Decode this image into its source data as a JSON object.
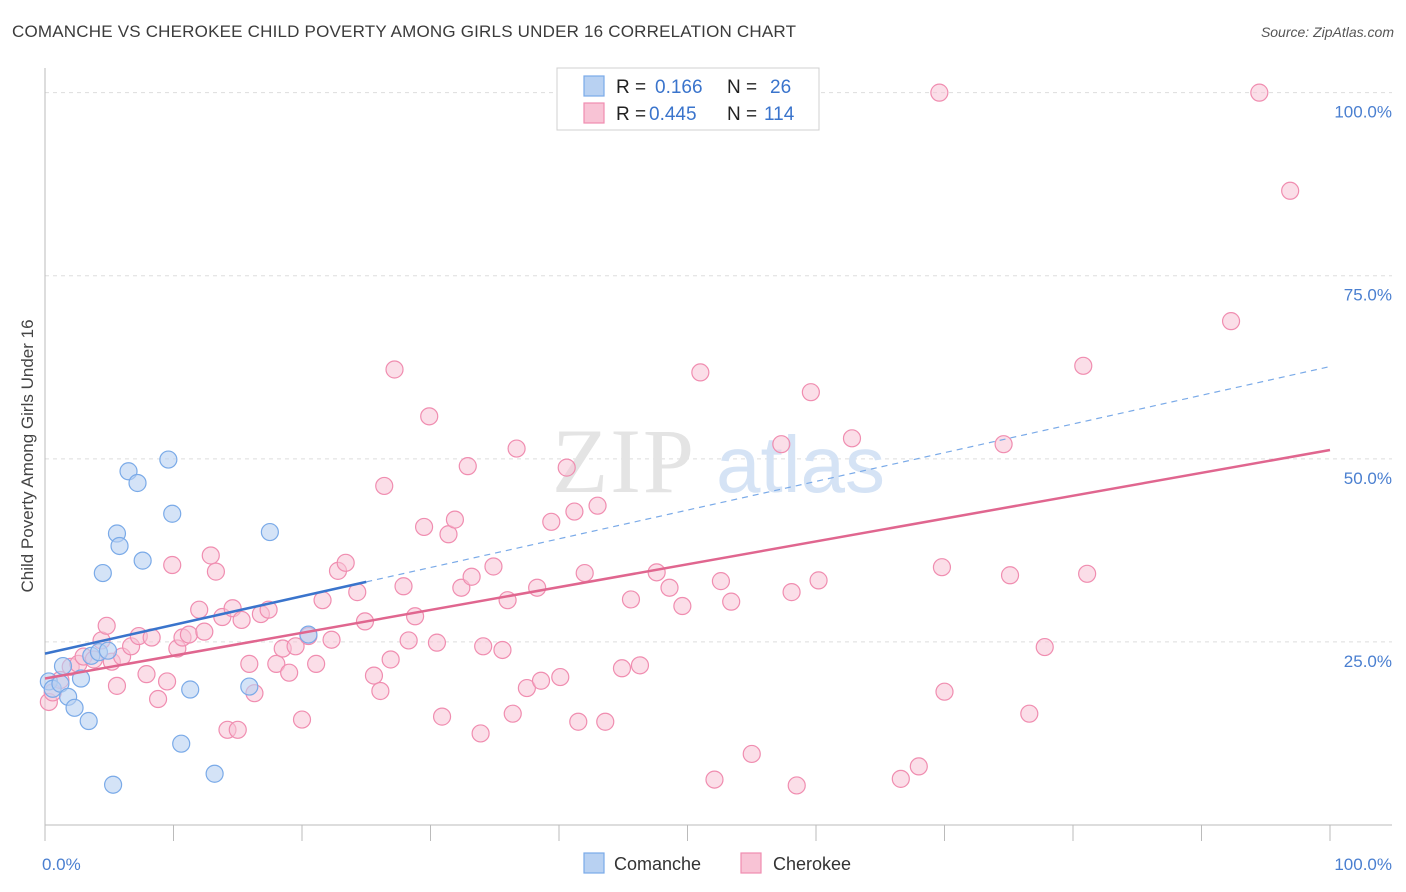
{
  "header": {
    "title": "COMANCHE VS CHEROKEE CHILD POVERTY AMONG GIRLS UNDER 16 CORRELATION CHART",
    "source": "Source: ZipAtlas.com"
  },
  "watermark": {
    "zip": "ZIP",
    "atlas": "atlas"
  },
  "colors": {
    "comanche": "#7aaae8",
    "comanche_fill": "#b8d1f2",
    "comanche_line": "#3a74cc",
    "cherokee": "#f08db0",
    "cherokee_fill": "#f8c3d5",
    "cherokee_line": "#e0668f",
    "axis_label": "#4a7fd0",
    "grid": "#dddddd"
  },
  "legend": {
    "rows": [
      {
        "r_label": "R = ",
        "r_value": "0.166",
        "n_label": "N = ",
        "n_value": "26"
      },
      {
        "r_label": "R = ",
        "r_value": "0.445",
        "n_label": "N = ",
        "n_value": "114"
      }
    ]
  },
  "chart_data": {
    "type": "scatter",
    "title": "COMANCHE VS CHEROKEE CHILD POVERTY AMONG GIRLS UNDER 16 CORRELATION CHART",
    "xlabel": "",
    "ylabel": "Child Poverty Among Girls Under 16",
    "xlim": [
      0,
      100
    ],
    "ylim": [
      0,
      102
    ],
    "x_tick_labels": [
      "0.0%",
      "100.0%"
    ],
    "y_ticks": [
      25,
      50,
      75,
      100
    ],
    "y_tick_labels": [
      "25.0%",
      "50.0%",
      "75.0%",
      "100.0%"
    ],
    "grid": true,
    "legend_position": "top-center",
    "series": [
      {
        "name": "Comanche",
        "r": 0.166,
        "n": 26,
        "trend": {
          "x0": 0,
          "y0": 23.4,
          "x1": 25,
          "y1": 33.2,
          "dash_to_x": 100,
          "dash_to_y": 62.6
        },
        "points": [
          [
            0.3,
            19.6
          ],
          [
            0.6,
            18.6
          ],
          [
            1.2,
            19.3
          ],
          [
            1.4,
            21.7
          ],
          [
            1.8,
            17.5
          ],
          [
            2.3,
            16.0
          ],
          [
            2.8,
            20.0
          ],
          [
            3.4,
            14.2
          ],
          [
            3.6,
            23.1
          ],
          [
            4.2,
            23.6
          ],
          [
            4.5,
            34.4
          ],
          [
            4.9,
            23.8
          ],
          [
            5.3,
            5.5
          ],
          [
            5.6,
            39.8
          ],
          [
            5.8,
            38.1
          ],
          [
            6.5,
            48.3
          ],
          [
            7.2,
            46.7
          ],
          [
            7.6,
            36.1
          ],
          [
            9.6,
            49.9
          ],
          [
            9.9,
            42.5
          ],
          [
            10.6,
            11.1
          ],
          [
            11.3,
            18.5
          ],
          [
            13.2,
            7.0
          ],
          [
            15.9,
            18.9
          ],
          [
            17.5,
            40.0
          ],
          [
            20.5,
            26.0
          ]
        ]
      },
      {
        "name": "Cherokee",
        "r": 0.445,
        "n": 114,
        "trend": {
          "x0": 0,
          "y0": 20.0,
          "x1": 100,
          "y1": 51.2
        },
        "points": [
          [
            0.3,
            16.8
          ],
          [
            0.6,
            18.1
          ],
          [
            1.2,
            19.8
          ],
          [
            2.0,
            21.6
          ],
          [
            2.6,
            22.0
          ],
          [
            3.0,
            23.0
          ],
          [
            3.8,
            22.6
          ],
          [
            4.4,
            25.2
          ],
          [
            4.8,
            27.2
          ],
          [
            5.2,
            22.3
          ],
          [
            5.6,
            19.0
          ],
          [
            6.0,
            23.0
          ],
          [
            6.7,
            24.4
          ],
          [
            7.3,
            25.8
          ],
          [
            7.9,
            20.6
          ],
          [
            8.3,
            25.6
          ],
          [
            8.8,
            17.2
          ],
          [
            9.5,
            19.6
          ],
          [
            9.9,
            35.5
          ],
          [
            10.3,
            24.1
          ],
          [
            10.7,
            25.6
          ],
          [
            11.2,
            26.0
          ],
          [
            12.0,
            29.4
          ],
          [
            12.4,
            26.4
          ],
          [
            12.9,
            36.8
          ],
          [
            13.3,
            34.6
          ],
          [
            13.8,
            28.4
          ],
          [
            14.2,
            13.0
          ],
          [
            14.6,
            29.6
          ],
          [
            15.3,
            28.0
          ],
          [
            15.9,
            22.0
          ],
          [
            16.3,
            18.0
          ],
          [
            16.8,
            28.8
          ],
          [
            17.4,
            29.4
          ],
          [
            18.0,
            22.0
          ],
          [
            18.5,
            24.1
          ],
          [
            19.0,
            20.8
          ],
          [
            19.5,
            24.4
          ],
          [
            20.0,
            14.4
          ],
          [
            20.5,
            25.8
          ],
          [
            21.1,
            22.0
          ],
          [
            21.6,
            30.7
          ],
          [
            22.3,
            25.3
          ],
          [
            22.8,
            34.7
          ],
          [
            23.4,
            35.8
          ],
          [
            24.3,
            31.8
          ],
          [
            24.9,
            27.8
          ],
          [
            25.6,
            20.4
          ],
          [
            26.1,
            18.3
          ],
          [
            26.4,
            46.3
          ],
          [
            26.9,
            22.6
          ],
          [
            27.2,
            62.2
          ],
          [
            27.9,
            32.6
          ],
          [
            28.3,
            25.2
          ],
          [
            28.8,
            28.5
          ],
          [
            29.5,
            40.7
          ],
          [
            29.9,
            55.8
          ],
          [
            30.5,
            24.9
          ],
          [
            30.9,
            14.8
          ],
          [
            31.4,
            39.7
          ],
          [
            31.9,
            41.7
          ],
          [
            32.4,
            32.4
          ],
          [
            32.9,
            49.0
          ],
          [
            33.2,
            33.9
          ],
          [
            33.9,
            12.5
          ],
          [
            34.1,
            24.4
          ],
          [
            34.9,
            35.3
          ],
          [
            35.6,
            23.9
          ],
          [
            36.0,
            30.7
          ],
          [
            36.4,
            15.2
          ],
          [
            36.7,
            51.4
          ],
          [
            37.5,
            18.7
          ],
          [
            38.3,
            32.4
          ],
          [
            38.6,
            19.7
          ],
          [
            39.4,
            41.4
          ],
          [
            40.1,
            20.2
          ],
          [
            40.6,
            48.8
          ],
          [
            41.2,
            42.8
          ],
          [
            41.5,
            14.1
          ],
          [
            42.0,
            34.4
          ],
          [
            43.0,
            43.6
          ],
          [
            43.6,
            14.1
          ],
          [
            44.9,
            21.4
          ],
          [
            45.6,
            30.8
          ],
          [
            46.3,
            21.8
          ],
          [
            47.6,
            34.5
          ],
          [
            48.6,
            32.4
          ],
          [
            49.6,
            29.9
          ],
          [
            51.0,
            61.8
          ],
          [
            52.1,
            6.2
          ],
          [
            52.6,
            33.3
          ],
          [
            53.4,
            30.5
          ],
          [
            55.0,
            9.7
          ],
          [
            57.3,
            52.0
          ],
          [
            58.1,
            31.8
          ],
          [
            58.5,
            5.4
          ],
          [
            59.6,
            59.1
          ],
          [
            60.2,
            33.4
          ],
          [
            62.8,
            52.8
          ],
          [
            66.6,
            6.3
          ],
          [
            68.0,
            8.0
          ],
          [
            69.6,
            100.0
          ],
          [
            69.8,
            35.2
          ],
          [
            70.0,
            18.2
          ],
          [
            74.6,
            52.0
          ],
          [
            75.1,
            34.1
          ],
          [
            76.6,
            15.2
          ],
          [
            77.8,
            24.3
          ],
          [
            80.8,
            62.7
          ],
          [
            81.1,
            34.3
          ],
          [
            94.5,
            100.0
          ],
          [
            96.9,
            86.6
          ],
          [
            92.3,
            68.8
          ],
          [
            15.0,
            13.0
          ]
        ]
      }
    ]
  },
  "bottom_legend": {
    "items": [
      {
        "label": "Comanche"
      },
      {
        "label": "Cherokee"
      }
    ]
  },
  "axis": {
    "ylabel": "Child Poverty Among Girls Under 16"
  }
}
